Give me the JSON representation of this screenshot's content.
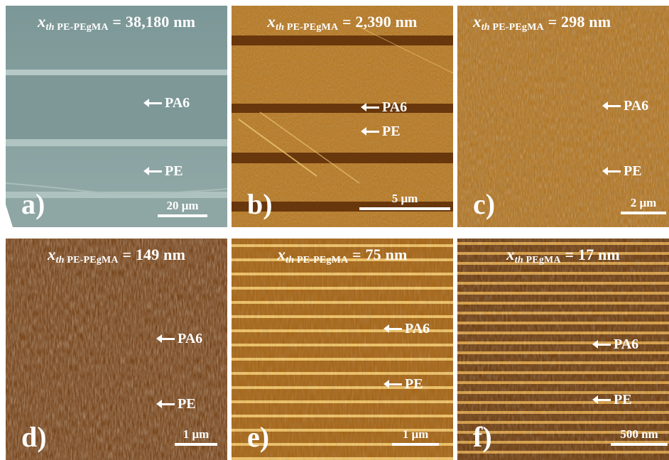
{
  "panels": [
    {
      "letter": "a)",
      "sym": "x",
      "subItalic": "th",
      "subRest": " PE-PEgMA",
      "value": "= 38,180 nm",
      "arrow1": "PA6",
      "arrow2": "PE",
      "scale": "20 μm"
    },
    {
      "letter": "b)",
      "sym": "x",
      "subItalic": "th",
      "subRest": " PE-PEgMA",
      "value": "= 2,390 nm",
      "arrow1": "PA6",
      "arrow2": "PE",
      "scale": "5 μm"
    },
    {
      "letter": "c)",
      "sym": "x",
      "subItalic": "th",
      "subRest": " PE-PEgMA",
      "value": "= 298 nm",
      "arrow1": "PA6",
      "arrow2": "PE",
      "scale": "2 μm"
    },
    {
      "letter": "d)",
      "sym": "x",
      "subItalic": "th",
      "subRest": " PE-PEgMA",
      "value": "= 149 nm",
      "arrow1": "PA6",
      "arrow2": "PE",
      "scale": "1 μm"
    },
    {
      "letter": "e)",
      "sym": "x",
      "subItalic": "th",
      "subRest": " PE-PEgMA",
      "value": "= 75 nm",
      "arrow1": "PA6",
      "arrow2": "PE",
      "scale": "1 μm"
    },
    {
      "letter": "f)",
      "sym": "x",
      "subItalic": "th",
      "subRest": " PEgMA",
      "value": "= 17 nm",
      "arrow1": "PA6",
      "arrow2": "PE",
      "scale": "500 nm"
    }
  ],
  "colors": {
    "optical": "#8ba3a2",
    "afm": "#b8720f",
    "afm_dark": "#4a2404",
    "afm_light": "#f2c25a"
  }
}
